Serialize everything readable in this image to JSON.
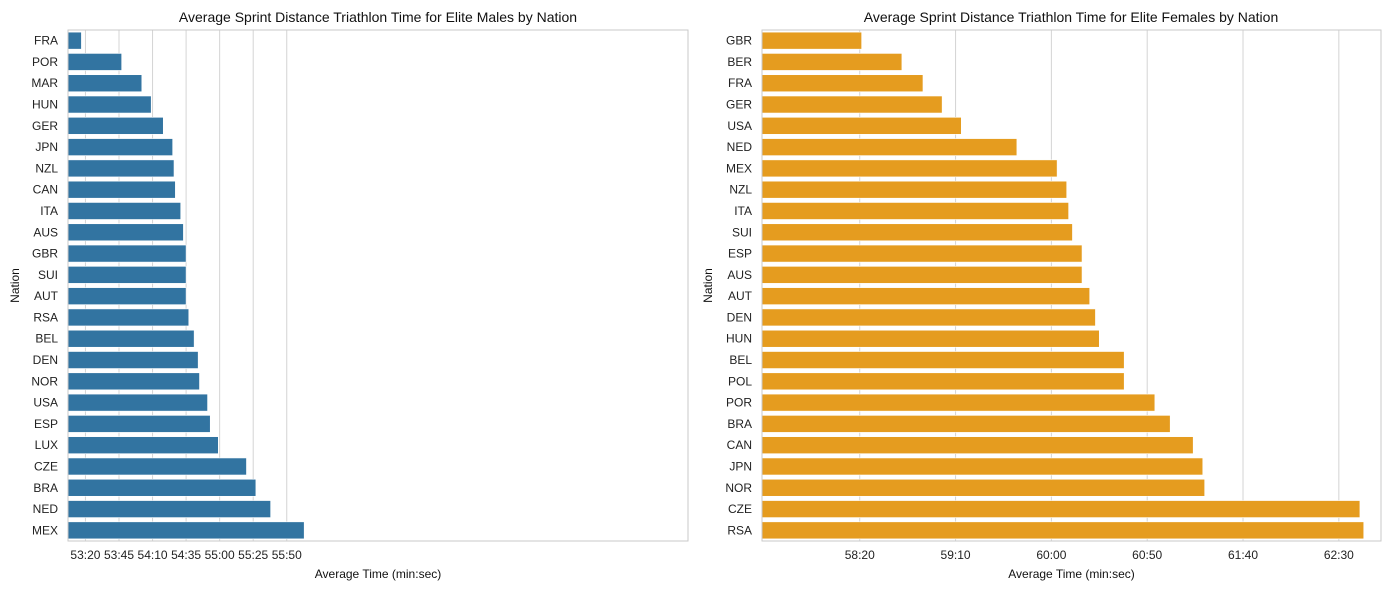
{
  "chart_data": [
    {
      "type": "bar",
      "orientation": "horizontal",
      "title": "Average Sprint Distance Triathlon Time for Elite Males by Nation",
      "xlabel": "Average Time (min:sec)",
      "ylabel": "Nation",
      "grid": "x",
      "color": "#3274a1",
      "xlim": [
        3187,
        3649
      ],
      "xticks": [
        3200,
        3225,
        3250,
        3275,
        3300,
        3325,
        3350
      ],
      "xtick_labels": [
        "53:20",
        "53:45",
        "54:10",
        "54:35",
        "55:00",
        "55:25",
        "55:50"
      ],
      "categories": [
        "FRA",
        "POR",
        "MAR",
        "HUN",
        "GER",
        "JPN",
        "NZL",
        "CAN",
        "ITA",
        "AUS",
        "GBR",
        "SUI",
        "AUT",
        "RSA",
        "BEL",
        "DEN",
        "NOR",
        "USA",
        "ESP",
        "LUX",
        "CZE",
        "BRA",
        "NED",
        "MEX"
      ],
      "values": [
        3197,
        3227,
        3242,
        3249,
        3258,
        3265,
        3266,
        3267,
        3271,
        3273,
        3275,
        3275,
        3275,
        3277,
        3281,
        3284,
        3285,
        3291,
        3293,
        3299,
        3320,
        3327,
        3338,
        3363
      ]
    },
    {
      "type": "bar",
      "orientation": "horizontal",
      "title": "Average Sprint Distance Triathlon Time for Elite Females by Nation",
      "xlabel": "Average Time (min:sec)",
      "ylabel": "Nation",
      "grid": "x",
      "color": "#e59c1f",
      "xlim": [
        3449,
        3772
      ],
      "xticks": [
        3500,
        3550,
        3600,
        3650,
        3700,
        3750
      ],
      "xtick_labels": [
        "58:20",
        "59:10",
        "60:00",
        "60:50",
        "61:40",
        "62:30"
      ],
      "categories": [
        "GBR",
        "BER",
        "FRA",
        "GER",
        "USA",
        "NED",
        "MEX",
        "NZL",
        "ITA",
        "SUI",
        "ESP",
        "AUS",
        "AUT",
        "DEN",
        "HUN",
        "BEL",
        "POL",
        "POR",
        "BRA",
        "CAN",
        "JPN",
        "NOR",
        "CZE",
        "RSA"
      ],
      "values": [
        3501,
        3522,
        3533,
        3543,
        3553,
        3582,
        3603,
        3608,
        3609,
        3611,
        3616,
        3616,
        3620,
        3623,
        3625,
        3638,
        3638,
        3654,
        3662,
        3674,
        3679,
        3680,
        3761,
        3763
      ]
    }
  ]
}
